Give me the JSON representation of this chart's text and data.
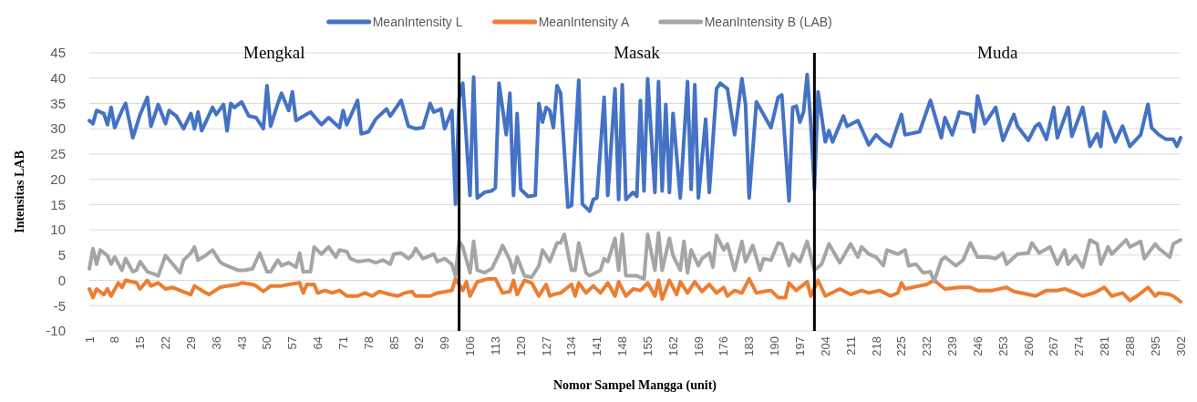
{
  "chart_data": {
    "type": "line",
    "xlabel": "Nomor Sampel Mangga (unit)",
    "ylabel": "Intensitas LAB",
    "legend": "top",
    "grid": "y",
    "line_style": "solid",
    "marker": "none",
    "xlim": [
      1,
      302
    ],
    "xticks": [
      1,
      8,
      15,
      22,
      29,
      36,
      43,
      50,
      57,
      64,
      71,
      78,
      85,
      92,
      99,
      106,
      113,
      120,
      127,
      134,
      141,
      148,
      155,
      162,
      169,
      176,
      183,
      190,
      197,
      204,
      211,
      218,
      225,
      232,
      239,
      246,
      253,
      260,
      267,
      274,
      281,
      288,
      295,
      302
    ],
    "ylim": [
      -10,
      45
    ],
    "yticks": [
      -10,
      -5,
      0,
      5,
      10,
      15,
      20,
      25,
      30,
      35,
      40,
      45
    ],
    "ref_lines": [
      {
        "axis": "x",
        "value": 103,
        "color": "#000000"
      },
      {
        "axis": "x",
        "value": 201,
        "color": "#000000"
      }
    ],
    "annotations": [
      "Mengkal",
      "Masak",
      "Muda"
    ],
    "series": [
      {
        "name": "MeanIntensity L",
        "color": "#4472c4",
        "x": [
          1,
          2,
          3,
          5,
          6,
          7,
          8,
          10,
          11,
          13,
          15,
          17,
          18,
          20,
          22,
          23,
          25,
          27,
          29,
          30,
          31,
          32,
          35,
          36,
          38,
          39,
          40,
          41,
          43,
          45,
          47,
          49,
          50,
          51,
          53,
          54,
          56,
          57,
          58,
          62,
          65,
          67,
          70,
          71,
          72,
          75,
          76,
          78,
          80,
          83,
          84,
          87,
          89,
          91,
          93,
          95,
          96,
          98,
          99,
          101,
          102,
          103,
          104,
          106,
          107,
          108,
          110,
          112,
          113,
          114,
          116,
          117,
          118,
          119,
          120,
          122,
          124,
          125,
          126,
          127,
          128,
          129,
          130,
          131,
          133,
          134,
          136,
          137,
          139,
          140,
          141,
          143,
          144,
          146,
          147,
          148,
          149,
          151,
          152,
          153,
          154,
          155,
          157,
          158,
          159,
          160,
          161,
          162,
          164,
          166,
          167,
          168,
          169,
          171,
          172,
          174,
          175,
          177,
          179,
          181,
          182,
          183,
          185,
          189,
          191,
          192,
          194,
          195,
          196,
          197,
          198,
          199,
          200,
          201,
          202,
          204,
          205,
          206,
          209,
          210,
          213,
          216,
          218,
          220,
          222,
          225,
          226,
          230,
          233,
          236,
          237,
          239,
          241,
          244,
          245,
          246,
          248,
          251,
          253,
          256,
          257,
          260,
          262,
          263,
          265,
          267,
          268,
          271,
          272,
          275,
          277,
          279,
          280,
          281,
          284,
          286,
          288,
          291,
          293,
          294,
          296,
          298,
          300,
          301,
          302
        ],
        "values": [
          31.6,
          31,
          33.6,
          33,
          30.8,
          34.2,
          30.2,
          33.6,
          35,
          28.2,
          32.8,
          36.2,
          30.5,
          34.8,
          31,
          33.6,
          32.5,
          30,
          33,
          30,
          33.3,
          29.6,
          34.2,
          32.8,
          34.8,
          29.6,
          35,
          34.2,
          35.3,
          32.5,
          32.2,
          30,
          38.5,
          30.5,
          35,
          37,
          33.6,
          37.3,
          31.6,
          33.3,
          30.8,
          32.2,
          30.2,
          33.6,
          30.8,
          35.6,
          29,
          29.4,
          31.9,
          33.9,
          32.5,
          35.6,
          30.5,
          30,
          30.2,
          35,
          33.3,
          33.9,
          30,
          33.6,
          15.1,
          36,
          39,
          16.8,
          40.2,
          16.3,
          17.4,
          17.7,
          18.3,
          39,
          28.8,
          37,
          16.8,
          33,
          18,
          16.6,
          16.8,
          35,
          31.3,
          34.2,
          33.6,
          30.2,
          38.5,
          37,
          14.5,
          14.8,
          39.6,
          15.1,
          13.7,
          16,
          16.3,
          36.2,
          16.8,
          37.9,
          16,
          38.7,
          16,
          17.4,
          16.6,
          35.6,
          17.7,
          39.9,
          17.4,
          39.3,
          17.7,
          34.8,
          17.4,
          33,
          16.3,
          39.3,
          18,
          38.7,
          16.3,
          31.9,
          17.4,
          37.9,
          39,
          37.9,
          28.8,
          39.9,
          34.8,
          16.3,
          35.3,
          30.2,
          36.2,
          36.7,
          15.7,
          34.2,
          34.5,
          31.3,
          33.3,
          40.7,
          31,
          18,
          37.3,
          27.4,
          29.6,
          27.4,
          32.5,
          30.5,
          31.6,
          26.8,
          28.8,
          27.4,
          26.5,
          32.8,
          28.8,
          29.4,
          35.6,
          28.2,
          32.2,
          28.8,
          33.3,
          32.8,
          29.4,
          36.5,
          31,
          34.2,
          27.7,
          32.8,
          30.5,
          27.7,
          30.5,
          31,
          27.9,
          34.2,
          28.2,
          34.2,
          28.5,
          34.2,
          26.5,
          29,
          26.5,
          33.3,
          27.4,
          30.5,
          26.5,
          28.8,
          34.8,
          30.2,
          28.8,
          27.9,
          27.9,
          26.5,
          28.2
        ]
      },
      {
        "name": "MeanIntensity A",
        "color": "#ed7d31",
        "x": [
          1,
          2,
          3,
          5,
          6,
          7,
          9,
          10,
          11,
          14,
          15,
          17,
          18,
          20,
          22,
          24,
          26,
          29,
          30,
          32,
          34,
          37,
          39,
          42,
          43,
          46,
          47,
          49,
          51,
          54,
          56,
          59,
          60,
          61,
          63,
          64,
          66,
          68,
          70,
          72,
          75,
          77,
          79,
          81,
          84,
          86,
          88,
          90,
          91,
          95,
          97,
          101,
          102,
          104,
          105,
          106,
          108,
          111,
          113,
          115,
          117,
          118,
          119,
          121,
          123,
          125,
          127,
          128,
          129,
          131,
          134,
          135,
          136,
          138,
          140,
          142,
          144,
          146,
          147,
          149,
          151,
          153,
          155,
          157,
          158,
          159,
          161,
          163,
          164,
          166,
          168,
          170,
          172,
          174,
          176,
          177,
          179,
          181,
          183,
          185,
          187,
          189,
          191,
          193,
          194,
          196,
          197,
          199,
          200,
          202,
          204,
          208,
          211,
          214,
          216,
          219,
          222,
          224,
          225,
          226,
          230,
          232,
          234,
          237,
          241,
          244,
          246,
          250,
          254,
          256,
          260,
          262,
          265,
          268,
          270,
          273,
          275,
          278,
          281,
          283,
          286,
          288,
          290,
          293,
          295,
          296,
          299,
          300,
          302
        ],
        "values": [
          -1.7,
          -3.4,
          -1.7,
          -2.8,
          -1.7,
          -3.1,
          -0.5,
          -1.4,
          0,
          -0.5,
          -1.7,
          0,
          -1.1,
          -0.5,
          -1.7,
          -1.4,
          -2,
          -2.8,
          -1.1,
          -2,
          -2.8,
          -1.4,
          -1.1,
          -0.8,
          -0.5,
          -0.8,
          -1.1,
          -2.2,
          -1.1,
          -1.1,
          -0.8,
          -0.5,
          -2.5,
          -0.8,
          -0.8,
          -2.5,
          -2,
          -2.5,
          -2,
          -3.1,
          -3.1,
          -2.5,
          -3.1,
          -2.2,
          -2.8,
          -3.1,
          -2.5,
          -2.2,
          -3.1,
          -3.1,
          -2.5,
          -2,
          0.3,
          -2,
          -0.3,
          -3.1,
          -0.3,
          0.3,
          0.3,
          -2.5,
          -2.2,
          0,
          -2.8,
          0,
          -0.5,
          -3.1,
          -0.8,
          -3.1,
          -2.8,
          -2.5,
          -0.8,
          -3.1,
          -0.5,
          -2.5,
          -1.1,
          -2.5,
          -0.5,
          -3.1,
          -0.3,
          -3.1,
          -1.7,
          -2,
          -0.5,
          -3.1,
          0,
          -3.7,
          0,
          -2.8,
          -0.3,
          -2.5,
          -0.3,
          -2.2,
          -0.8,
          -2.5,
          -1.4,
          -3.1,
          -2,
          -2.5,
          0.3,
          -2.5,
          -2.2,
          -2,
          -3.4,
          -3.4,
          -0.5,
          -2,
          -1.4,
          -0.3,
          -3.1,
          0,
          -3.1,
          -1.7,
          -2.8,
          -2,
          -2.5,
          -2,
          -3.1,
          -2.5,
          -0.5,
          -1.7,
          -1.1,
          -0.8,
          0,
          -1.7,
          -1.4,
          -1.4,
          -2,
          -2,
          -1.4,
          -2.2,
          -2.8,
          -3.1,
          -2,
          -2,
          -1.7,
          -2.5,
          -3.1,
          -2.5,
          -1.4,
          -3.1,
          -2.5,
          -4,
          -3.1,
          -1.4,
          -3.1,
          -2.5,
          -2.8,
          -3.1,
          -4.2
        ]
      },
      {
        "name": "MeanIntensity B (LAB)",
        "color": "#a5a5a5",
        "x": [
          1,
          2,
          3,
          4,
          6,
          7,
          8,
          10,
          11,
          13,
          14,
          15,
          17,
          19,
          20,
          22,
          24,
          26,
          27,
          29,
          30,
          31,
          33,
          35,
          37,
          38,
          40,
          42,
          44,
          46,
          48,
          50,
          51,
          53,
          54,
          56,
          58,
          59,
          60,
          62,
          63,
          65,
          67,
          69,
          70,
          72,
          73,
          75,
          78,
          80,
          82,
          84,
          85,
          87,
          89,
          90,
          91,
          93,
          94,
          96,
          97,
          99,
          101,
          102,
          103,
          104,
          106,
          107,
          108,
          110,
          112,
          114,
          115,
          117,
          118,
          119,
          121,
          123,
          125,
          126,
          128,
          130,
          131,
          132,
          134,
          135,
          136,
          138,
          139,
          142,
          143,
          144,
          146,
          147,
          148,
          149,
          152,
          154,
          155,
          157,
          158,
          159,
          161,
          162,
          164,
          165,
          166,
          167,
          169,
          170,
          172,
          173,
          174,
          176,
          177,
          179,
          181,
          182,
          184,
          186,
          187,
          189,
          191,
          192,
          194,
          195,
          197,
          199,
          201,
          203,
          205,
          208,
          211,
          213,
          214,
          216,
          218,
          220,
          221,
          224,
          226,
          227,
          229,
          231,
          233,
          234,
          236,
          237,
          240,
          242,
          244,
          246,
          249,
          251,
          253,
          254,
          257,
          260,
          261,
          263,
          266,
          268,
          270,
          271,
          273,
          275,
          277,
          279,
          280,
          282,
          283,
          287,
          288,
          291,
          292,
          295,
          296,
          299,
          300,
          302
        ],
        "values": [
          2.3,
          6.3,
          3.2,
          6,
          4.9,
          3.2,
          4.6,
          2,
          4.3,
          1.7,
          2,
          3.7,
          1.7,
          1.2,
          0.9,
          4.9,
          3.2,
          1.5,
          4,
          5.4,
          6.6,
          4,
          4.9,
          6,
          3.7,
          3.2,
          2.6,
          2,
          2,
          2.3,
          5.4,
          1.7,
          1.7,
          4,
          2.9,
          3.5,
          2.6,
          5.4,
          1.7,
          1.7,
          6.6,
          5.2,
          6.6,
          4.6,
          6,
          5.7,
          4.3,
          3.7,
          4,
          3.5,
          4,
          3.2,
          5.2,
          5.4,
          4.3,
          4.9,
          6.3,
          4.3,
          4.6,
          5.2,
          3.7,
          4.3,
          3.2,
          0.9,
          7.7,
          6.6,
          1.5,
          7.7,
          2,
          1.5,
          2.3,
          5.2,
          6.9,
          4,
          1.5,
          4.6,
          0.9,
          0.6,
          2.9,
          6,
          3.7,
          7.4,
          7.4,
          9.1,
          2,
          2,
          7.4,
          1.5,
          0.9,
          2,
          4.3,
          3.7,
          8.3,
          2,
          9.1,
          0.9,
          0.9,
          0.3,
          9.1,
          2,
          9.4,
          2,
          8.3,
          4.9,
          2,
          7.7,
          1.5,
          6,
          2.9,
          4.3,
          5.4,
          2.6,
          8.9,
          6,
          7.2,
          2,
          7.7,
          3.7,
          6.9,
          2,
          4.3,
          4,
          7.4,
          7.2,
          2.9,
          5.2,
          3.7,
          7.7,
          2,
          3.2,
          7.2,
          3.5,
          7.2,
          4.6,
          6.6,
          5.2,
          4.6,
          2.9,
          6,
          5.2,
          6,
          2.9,
          3.2,
          1.5,
          1.7,
          -0.2,
          4,
          4.6,
          2.9,
          4,
          7.4,
          4.6,
          4.6,
          4.3,
          5.4,
          3.2,
          5.2,
          5.4,
          7.4,
          5.4,
          6.6,
          3.2,
          6,
          3.2,
          4.9,
          2.6,
          8,
          7.2,
          3.2,
          6.6,
          5.2,
          8,
          6.6,
          7.7,
          4.3,
          7.2,
          6.3,
          4.6,
          7.2,
          8
        ]
      }
    ]
  }
}
